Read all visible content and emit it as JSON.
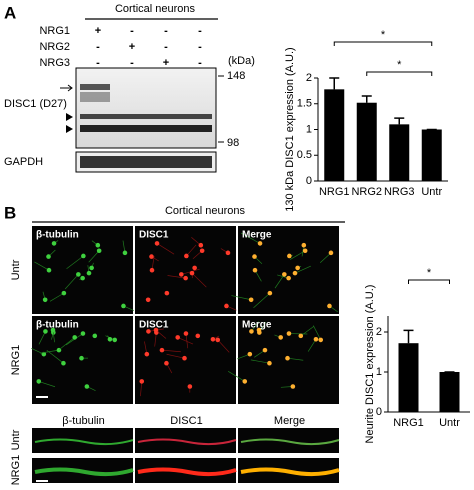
{
  "panel_a": {
    "label": "A",
    "header": "Cortical neurons",
    "conditions": [
      {
        "name": "NRG1",
        "signs": [
          "+",
          "-",
          "-",
          "-"
        ]
      },
      {
        "name": "NRG2",
        "signs": [
          "-",
          "+",
          "-",
          "-"
        ]
      },
      {
        "name": "NRG3",
        "signs": [
          "-",
          "-",
          "+",
          "-"
        ]
      }
    ],
    "unit": "(kDa)",
    "markers": [
      148,
      98
    ],
    "bands": [
      "DISC1 (D27)",
      "GAPDH"
    ]
  },
  "panel_b": {
    "label": "B",
    "header": "Cortical neurons",
    "image_rows": [
      {
        "name": "Untr",
        "channels": [
          "β-tubulin",
          "DISC1",
          "Merge"
        ]
      },
      {
        "name": "NRG1",
        "channels": [
          "β-tubulin",
          "DISC1",
          "Merge"
        ]
      }
    ],
    "neurite_columns": [
      "β-tubulin",
      "DISC1",
      "Merge"
    ],
    "neurite_rows": [
      "Untr",
      "NRG1"
    ]
  },
  "chart_data": [
    {
      "type": "bar",
      "y_label": "130 kDa DISC1 expression (A.U.)",
      "categories": [
        "NRG1",
        "NRG2",
        "NRG3",
        "Untr"
      ],
      "values": [
        1.78,
        1.52,
        1.1,
        1.0
      ],
      "errors": [
        0.22,
        0.13,
        0.12,
        0
      ],
      "color": "#000000",
      "ylim": [
        0,
        2
      ],
      "yticks": [
        0,
        0.5,
        1,
        1.5,
        2
      ],
      "significance": [
        {
          "pair": [
            "NRG1",
            "Untr"
          ],
          "label": "*"
        },
        {
          "pair": [
            "NRG2",
            "Untr"
          ],
          "label": "*"
        }
      ]
    },
    {
      "type": "bar",
      "y_label": "Neurite DISC1 expression (A.U.)",
      "categories": [
        "NRG1",
        "Untr"
      ],
      "values": [
        1.72,
        1.0
      ],
      "errors": [
        0.32,
        0
      ],
      "color": "#000000",
      "ylim": [
        0,
        2.4
      ],
      "yticks": [
        0,
        1,
        2
      ],
      "significance": [
        {
          "pair": [
            "NRG1",
            "Untr"
          ],
          "label": "*"
        }
      ]
    }
  ]
}
